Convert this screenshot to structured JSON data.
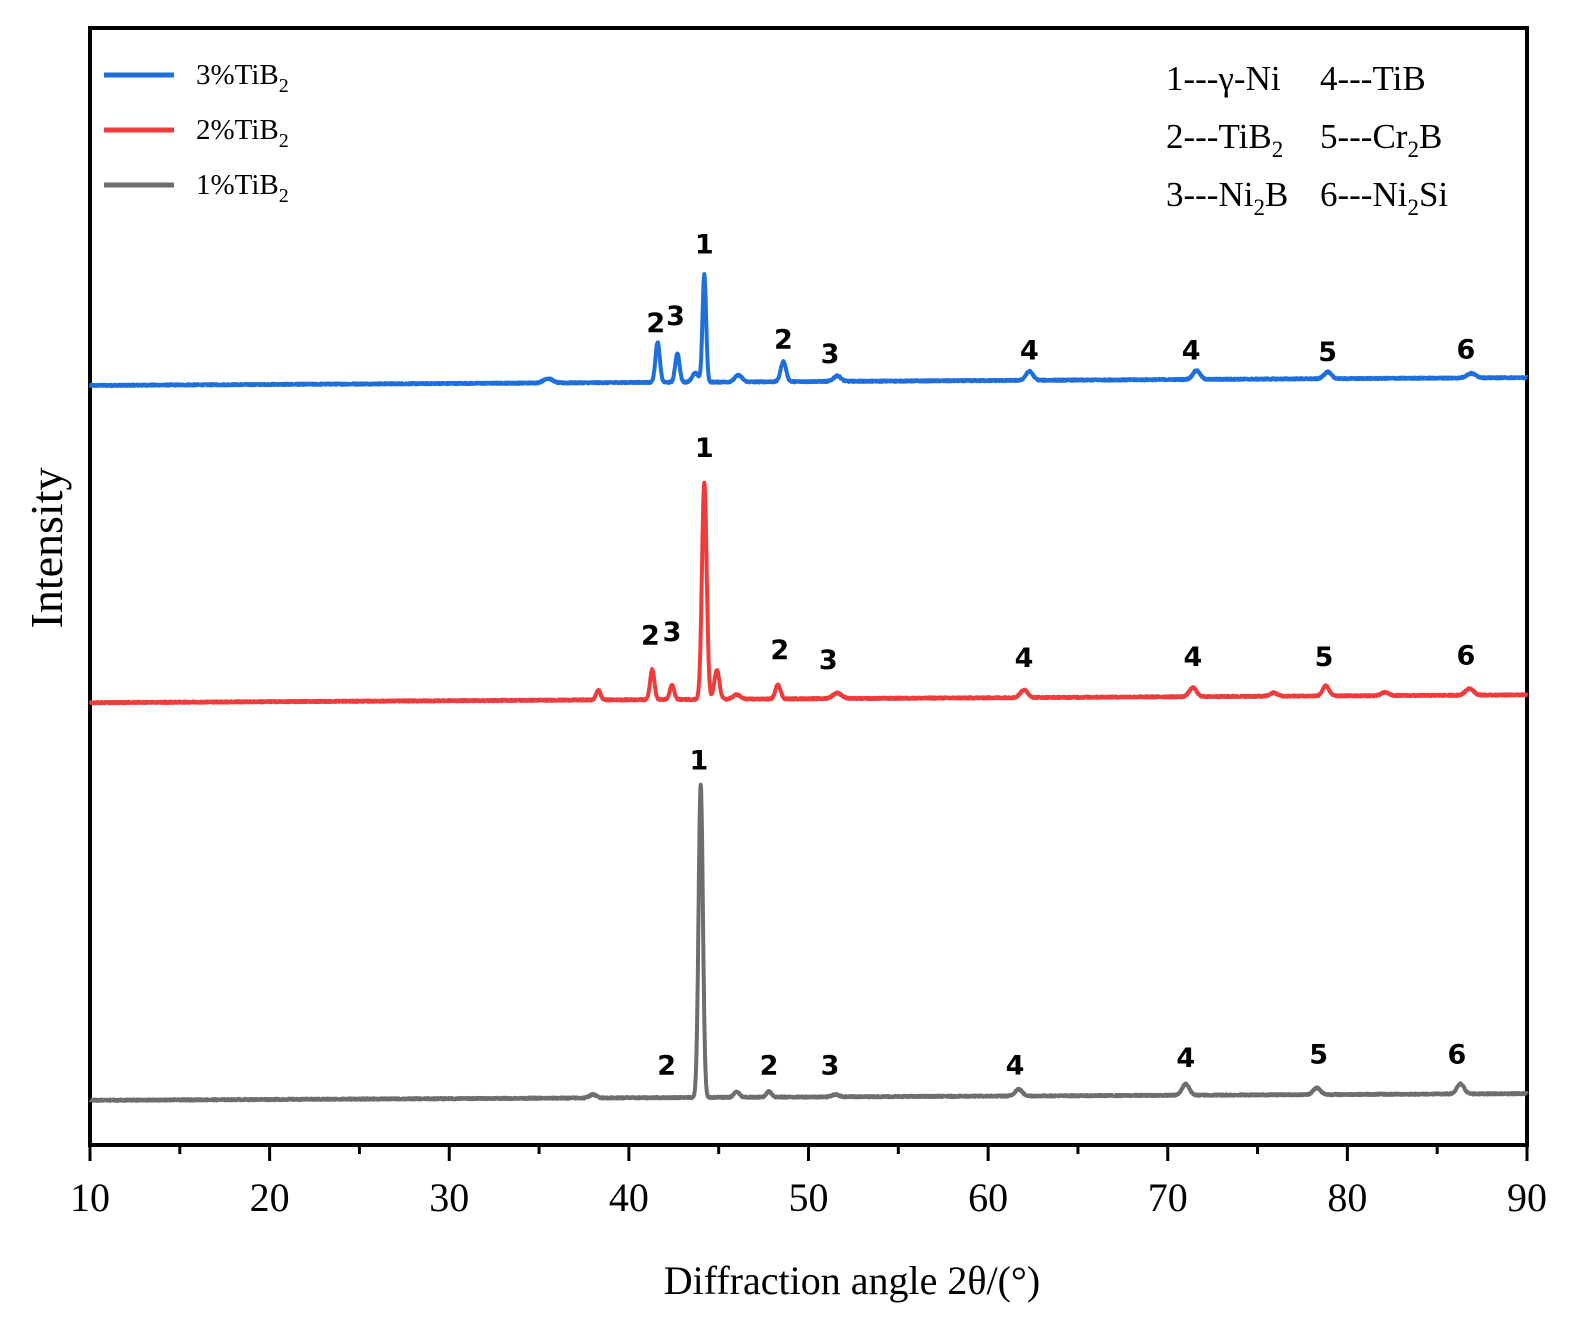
{
  "chart_data": {
    "type": "line",
    "title": "",
    "xlabel": "Diffraction angle 2θ/(°)",
    "ylabel": "Intensity",
    "xlim": [
      10,
      90
    ],
    "ylim": [
      0,
      100
    ],
    "x_ticks": [
      10,
      20,
      30,
      40,
      50,
      60,
      70,
      80,
      90
    ],
    "x_tick_labels": [
      "10",
      "20",
      "30",
      "40",
      "50",
      "60",
      "70",
      "80",
      "90"
    ],
    "grid": false,
    "y_ticks_shown": false,
    "legend": {
      "placement": "top-left",
      "entries": [
        {
          "series": "3%TiB2",
          "label": "3%TiB",
          "subscript": "2",
          "color": "#1e6fdc"
        },
        {
          "series": "2%TiB2",
          "label": "2%TiB",
          "subscript": "2",
          "color": "#ee3b3b"
        },
        {
          "series": "1%TiB2",
          "label": "1%TiB",
          "subscript": "2",
          "color": "#6e6e6e"
        }
      ]
    },
    "phase_key": {
      "placement": "top-right",
      "rows": [
        [
          {
            "text": "1---γ-Ni",
            "subscript": ""
          },
          {
            "text": "4---TiB",
            "subscript": ""
          }
        ],
        [
          {
            "text": "2---TiB",
            "subscript": "2"
          },
          {
            "text": "5---Cr",
            "subscript": "2",
            "suffix": "B"
          }
        ],
        [
          {
            "text": "3---Ni",
            "subscript": "2",
            "suffix": "B"
          },
          {
            "text": "6---Ni",
            "subscript": "2",
            "suffix": "Si"
          }
        ]
      ]
    },
    "series": [
      {
        "name": "3%TiB2",
        "color": "#1e6fdc",
        "baseline": 68.0,
        "baseline_end": 68.7,
        "peaks": [
          {
            "x": 35.5,
            "h": 0.4,
            "w": 0.25
          },
          {
            "x": 41.6,
            "h": 3.6,
            "w": 0.12
          },
          {
            "x": 42.7,
            "h": 2.6,
            "w": 0.12
          },
          {
            "x": 43.7,
            "h": 0.8,
            "w": 0.18
          },
          {
            "x": 44.2,
            "h": 9.6,
            "w": 0.1
          },
          {
            "x": 46.1,
            "h": 0.6,
            "w": 0.2
          },
          {
            "x": 48.6,
            "h": 1.8,
            "w": 0.15
          },
          {
            "x": 51.6,
            "h": 0.5,
            "w": 0.2
          },
          {
            "x": 62.3,
            "h": 0.8,
            "w": 0.2
          },
          {
            "x": 71.6,
            "h": 0.8,
            "w": 0.2
          },
          {
            "x": 78.9,
            "h": 0.6,
            "w": 0.2
          },
          {
            "x": 86.9,
            "h": 0.4,
            "w": 0.25
          }
        ],
        "peak_labels": [
          {
            "label": "2",
            "x": 41.5,
            "y": 72.8
          },
          {
            "label": "3",
            "x": 42.6,
            "y": 73.4
          },
          {
            "label": "1",
            "x": 44.2,
            "y": 79.8
          },
          {
            "label": "2",
            "x": 48.6,
            "y": 71.3
          },
          {
            "label": "3",
            "x": 51.2,
            "y": 70.0
          },
          {
            "label": "4",
            "x": 62.3,
            "y": 70.3
          },
          {
            "label": "4",
            "x": 71.3,
            "y": 70.3
          },
          {
            "label": "5",
            "x": 78.9,
            "y": 70.2
          },
          {
            "label": "6",
            "x": 86.6,
            "y": 70.4
          }
        ]
      },
      {
        "name": "2%TiB2",
        "color": "#ee3b3b",
        "baseline": 39.6,
        "baseline_end": 40.3,
        "peaks": [
          {
            "x": 38.3,
            "h": 0.9,
            "w": 0.12
          },
          {
            "x": 41.3,
            "h": 2.7,
            "w": 0.12
          },
          {
            "x": 42.4,
            "h": 1.3,
            "w": 0.12
          },
          {
            "x": 44.2,
            "h": 19.4,
            "w": 0.13
          },
          {
            "x": 44.9,
            "h": 2.6,
            "w": 0.14
          },
          {
            "x": 46.0,
            "h": 0.4,
            "w": 0.2
          },
          {
            "x": 48.3,
            "h": 1.3,
            "w": 0.14
          },
          {
            "x": 51.6,
            "h": 0.5,
            "w": 0.25
          },
          {
            "x": 62.0,
            "h": 0.7,
            "w": 0.2
          },
          {
            "x": 71.4,
            "h": 0.8,
            "w": 0.2
          },
          {
            "x": 75.9,
            "h": 0.3,
            "w": 0.2
          },
          {
            "x": 78.8,
            "h": 0.9,
            "w": 0.18
          },
          {
            "x": 82.1,
            "h": 0.3,
            "w": 0.2
          },
          {
            "x": 86.8,
            "h": 0.6,
            "w": 0.22
          }
        ],
        "peak_labels": [
          {
            "label": "2",
            "x": 41.2,
            "y": 44.8
          },
          {
            "label": "3",
            "x": 42.4,
            "y": 45.1
          },
          {
            "label": "1",
            "x": 44.2,
            "y": 61.6
          },
          {
            "label": "2",
            "x": 48.4,
            "y": 43.5
          },
          {
            "label": "3",
            "x": 51.1,
            "y": 42.6
          },
          {
            "label": "4",
            "x": 62.0,
            "y": 42.8
          },
          {
            "label": "4",
            "x": 71.4,
            "y": 42.9
          },
          {
            "label": "5",
            "x": 78.7,
            "y": 42.9
          },
          {
            "label": "6",
            "x": 86.6,
            "y": 43.0
          }
        ]
      },
      {
        "name": "1%TiB2",
        "color": "#6e6e6e",
        "baseline": 4.0,
        "baseline_end": 4.6,
        "peaks": [
          {
            "x": 38.0,
            "h": 0.3,
            "w": 0.2
          },
          {
            "x": 44.0,
            "h": 28.0,
            "w": 0.12
          },
          {
            "x": 46.0,
            "h": 0.5,
            "w": 0.15
          },
          {
            "x": 47.8,
            "h": 0.5,
            "w": 0.15
          },
          {
            "x": 51.5,
            "h": 0.2,
            "w": 0.2
          },
          {
            "x": 61.7,
            "h": 0.6,
            "w": 0.2
          },
          {
            "x": 71.0,
            "h": 1.0,
            "w": 0.2
          },
          {
            "x": 78.3,
            "h": 0.6,
            "w": 0.2
          },
          {
            "x": 86.3,
            "h": 0.9,
            "w": 0.2
          }
        ],
        "peak_labels": [
          {
            "label": "2",
            "x": 42.1,
            "y": 6.3
          },
          {
            "label": "1",
            "x": 43.9,
            "y": 33.6
          },
          {
            "label": "2",
            "x": 47.8,
            "y": 6.3
          },
          {
            "label": "3",
            "x": 51.2,
            "y": 6.3
          },
          {
            "label": "4",
            "x": 61.5,
            "y": 6.3
          },
          {
            "label": "4",
            "x": 71.0,
            "y": 7.0
          },
          {
            "label": "5",
            "x": 78.4,
            "y": 7.3
          },
          {
            "label": "6",
            "x": 86.1,
            "y": 7.3
          }
        ]
      }
    ]
  }
}
